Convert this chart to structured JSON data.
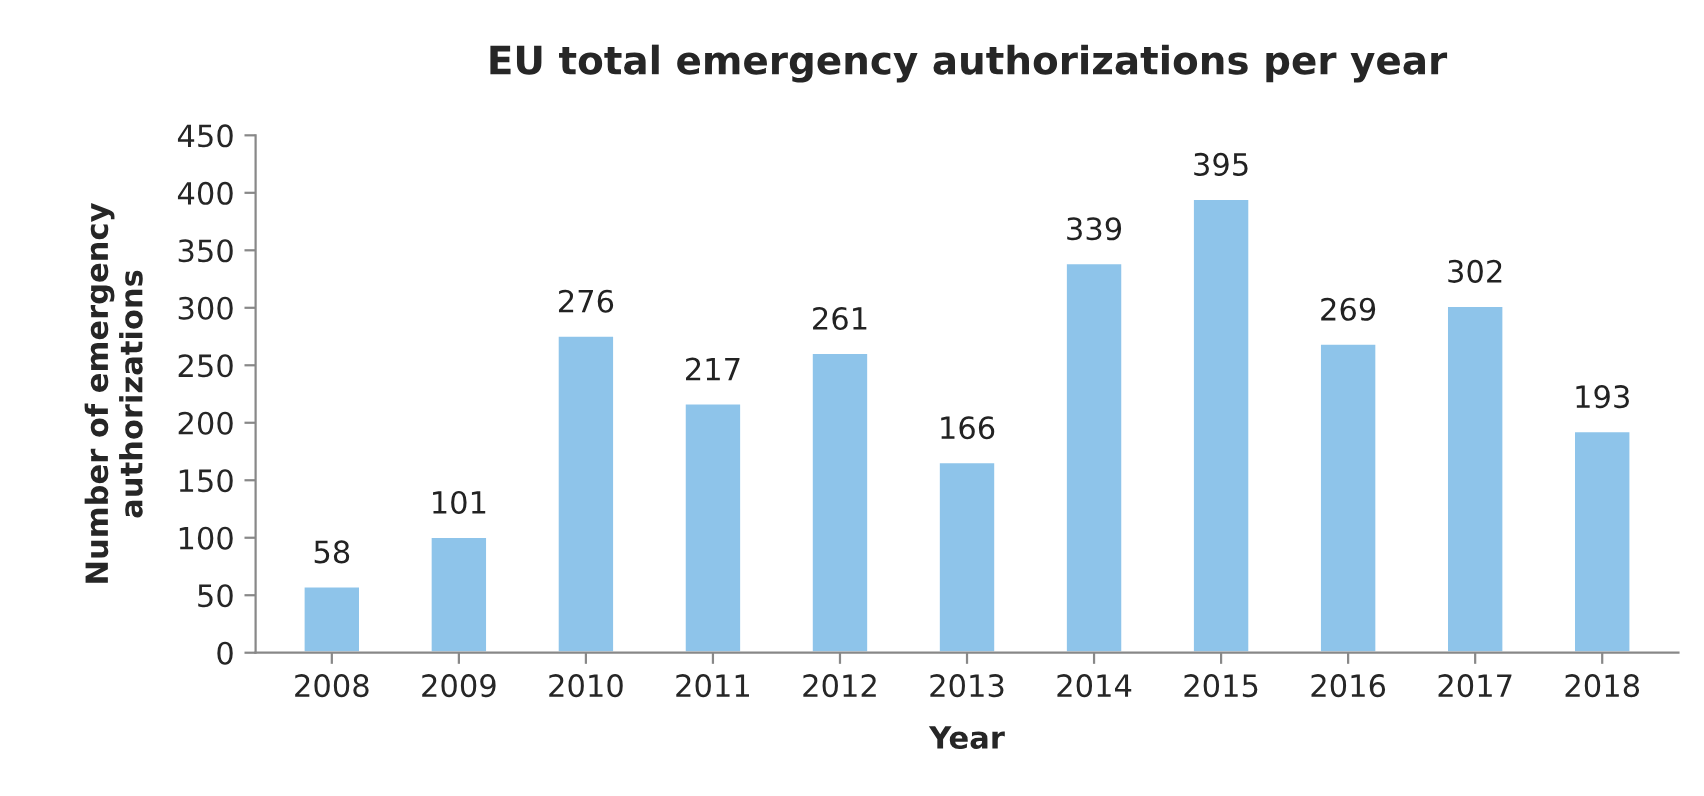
{
  "chart_data": {
    "type": "bar",
    "title": "EU total emergency authorizations per year",
    "xlabel": "Year",
    "ylabel": "Number of emergency\nauthorizations",
    "categories": [
      "2008",
      "2009",
      "2010",
      "2011",
      "2012",
      "2013",
      "2014",
      "2015",
      "2016",
      "2017",
      "2018"
    ],
    "values": [
      58,
      101,
      276,
      217,
      261,
      166,
      339,
      395,
      269,
      302,
      193
    ],
    "color": "#8ec4ea",
    "ylim": [
      0,
      450
    ],
    "yticks": [
      0,
      50,
      100,
      150,
      200,
      250,
      300,
      350,
      400,
      450
    ],
    "grid": false,
    "data_labels": true
  }
}
